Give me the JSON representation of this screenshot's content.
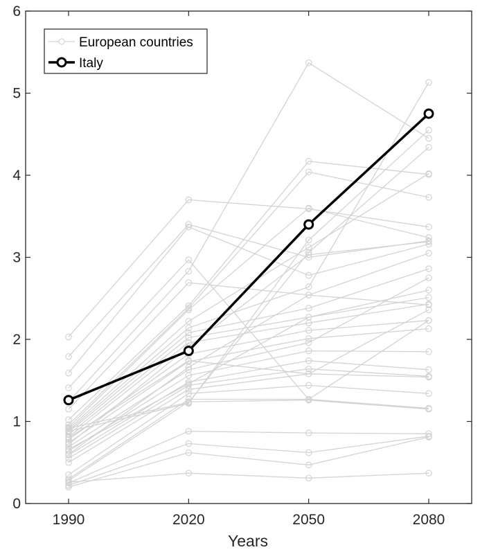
{
  "chart_data": {
    "type": "line",
    "title": "",
    "xlabel": "Years",
    "ylabel": "",
    "x": [
      1990,
      2020,
      2050,
      2080
    ],
    "xticks": [
      "1990",
      "2020",
      "2050",
      "2080"
    ],
    "ylim": [
      0,
      6
    ],
    "yticks": [
      "0",
      "1",
      "2",
      "3",
      "4",
      "5",
      "6"
    ],
    "grid": false,
    "legend_position": "top-left",
    "legend": [
      {
        "label": "European countries",
        "style": "background"
      },
      {
        "label": "Italy",
        "style": "highlight"
      }
    ],
    "colors": {
      "background_series": "#d3d3d3",
      "highlight_series": "#000000",
      "axis": "#262626"
    },
    "highlight_series": {
      "name": "Italy",
      "values": [
        1.26,
        1.86,
        3.4,
        4.75
      ]
    },
    "background_series": [
      {
        "values": [
          2.03,
          3.7,
          3.59,
          3.37
        ]
      },
      {
        "values": [
          1.79,
          3.4,
          3.0,
          3.2
        ]
      },
      {
        "values": [
          1.59,
          3.37,
          2.78,
          3.16
        ]
      },
      {
        "values": [
          1.41,
          2.97,
          1.27,
          2.23
        ]
      },
      {
        "values": [
          1.24,
          2.83,
          5.37,
          4.45
        ]
      },
      {
        "values": [
          1.15,
          2.69,
          2.54,
          2.42
        ]
      },
      {
        "values": [
          1.02,
          2.41,
          4.17,
          4.01
        ]
      },
      {
        "values": [
          0.96,
          2.38,
          4.04,
          3.73
        ]
      },
      {
        "values": [
          0.93,
          2.36,
          3.6,
          3.24
        ]
      },
      {
        "values": [
          0.91,
          2.22,
          3.12,
          4.02
        ]
      },
      {
        "values": [
          0.89,
          2.14,
          2.64,
          5.13
        ]
      },
      {
        "values": [
          0.87,
          2.08,
          2.38,
          2.86
        ]
      },
      {
        "values": [
          0.84,
          2.02,
          2.27,
          2.6
        ]
      },
      {
        "values": [
          0.81,
          1.96,
          2.2,
          2.43
        ]
      },
      {
        "values": [
          0.78,
          1.82,
          2.11,
          2.23
        ]
      },
      {
        "values": [
          0.74,
          1.73,
          2.01,
          2.13
        ]
      },
      {
        "values": [
          0.69,
          1.63,
          1.96,
          2.75
        ]
      },
      {
        "values": [
          0.64,
          1.56,
          1.86,
          1.85
        ]
      },
      {
        "values": [
          0.59,
          1.48,
          1.74,
          1.63
        ]
      },
      {
        "values": [
          0.55,
          1.44,
          1.64,
          1.55
        ]
      },
      {
        "values": [
          0.5,
          1.39,
          1.58,
          1.54
        ]
      },
      {
        "values": [
          0.35,
          1.34,
          1.44,
          1.34
        ]
      },
      {
        "values": [
          0.3,
          1.27,
          1.27,
          1.16
        ]
      },
      {
        "values": [
          0.28,
          1.24,
          1.26,
          1.15
        ]
      },
      {
        "values": [
          0.25,
          0.88,
          0.86,
          0.85
        ]
      },
      {
        "values": [
          0.22,
          0.73,
          0.62,
          0.82
        ]
      },
      {
        "values": [
          0.2,
          0.62,
          0.47,
          0.81
        ]
      },
      {
        "values": [
          0.26,
          0.37,
          0.31,
          0.37
        ]
      },
      {
        "values": [
          0.92,
          1.23,
          3.06,
          4.34
        ]
      },
      {
        "values": [
          0.88,
          1.22,
          3.21,
          4.55
        ]
      },
      {
        "values": [
          0.6,
          1.66,
          2.54,
          3.05
        ]
      },
      {
        "values": [
          0.72,
          1.91,
          3.03,
          3.19
        ]
      },
      {
        "values": [
          0.66,
          1.46,
          2.27,
          2.51
        ]
      },
      {
        "values": [
          0.8,
          1.74,
          1.58,
          2.36
        ]
      }
    ]
  }
}
